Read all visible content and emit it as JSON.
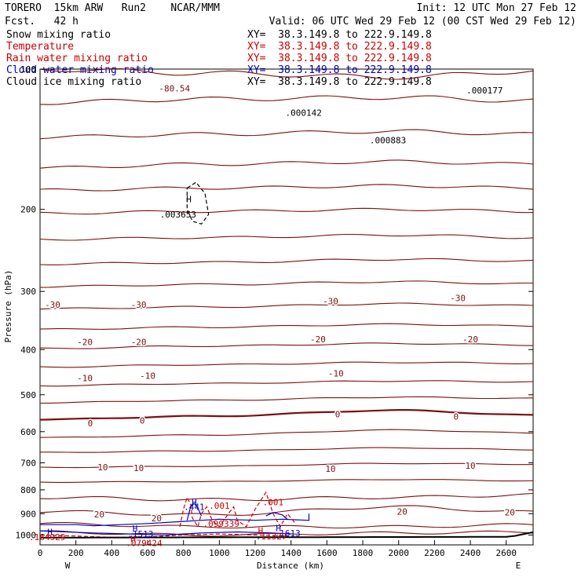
{
  "header": {
    "left_line1": "TORERO  15km ARW   Run2    NCAR/MMM",
    "left_line2": "Fcst.   42 h",
    "init": "Init: 12 UTC Mon 27 Feb 12",
    "valid": "Valid: 06 UTC Wed 29 Feb 12 (00 CST Wed 29 Feb 12)"
  },
  "legend": [
    {
      "name": "Snow mixing ratio",
      "color": "#000000",
      "xy": "XY=  38.3.149.8 to 222.9.149.8"
    },
    {
      "name": "Temperature",
      "color": "#cc0000",
      "xy": "XY=  38.3.149.8 to 222.9.149.8"
    },
    {
      "name": "Rain water mixing ratio",
      "color": "#cc0000",
      "xy": "XY=  38.3.149.8 to 222.9.149.8"
    },
    {
      "name": "Cloud water mixing ratio",
      "color": "#0000cc",
      "xy": "XY=  38.3.149.8 to 222.9.149.8"
    },
    {
      "name": "Cloud ice mixing ratio",
      "color": "#000000",
      "xy": "XY=  38.3.149.8 to 222.9.149.8"
    }
  ],
  "chart_data": {
    "type": "line",
    "title": "",
    "xlabel": "Distance (km)",
    "ylabel": "Pressure (hPa)",
    "xlim": [
      0,
      2750
    ],
    "ylim": [
      1050,
      100
    ],
    "x_ticks": [
      0,
      200,
      400,
      600,
      800,
      1000,
      1200,
      1400,
      1600,
      1800,
      2000,
      2200,
      2400,
      2600
    ],
    "y_ticks": [
      100,
      200,
      300,
      400,
      500,
      600,
      700,
      800,
      900,
      1000
    ],
    "y_log": true,
    "left_end_label": "W",
    "right_end_label": "E",
    "temperature_labels": [
      {
        "text": "-80.54",
        "x": 750,
        "p": 110
      },
      {
        "text": "-30",
        "x": 70,
        "p": 320
      },
      {
        "text": "-30",
        "x": 550,
        "p": 320
      },
      {
        "text": "-30",
        "x": 1620,
        "p": 315
      },
      {
        "text": "-30",
        "x": 2330,
        "p": 310
      },
      {
        "text": "-20",
        "x": 250,
        "p": 385
      },
      {
        "text": "-20",
        "x": 550,
        "p": 385
      },
      {
        "text": "-20",
        "x": 1550,
        "p": 380
      },
      {
        "text": "-20",
        "x": 2400,
        "p": 380
      },
      {
        "text": "-10",
        "x": 250,
        "p": 460
      },
      {
        "text": "-10",
        "x": 600,
        "p": 455
      },
      {
        "text": "-10",
        "x": 1650,
        "p": 450
      },
      {
        "text": "0",
        "x": 280,
        "p": 575
      },
      {
        "text": "0",
        "x": 570,
        "p": 568
      },
      {
        "text": "0",
        "x": 1660,
        "p": 550
      },
      {
        "text": "0",
        "x": 2320,
        "p": 557
      },
      {
        "text": "10",
        "x": 350,
        "p": 715
      },
      {
        "text": "10",
        "x": 550,
        "p": 718
      },
      {
        "text": "10",
        "x": 1620,
        "p": 720
      },
      {
        "text": "10",
        "x": 2400,
        "p": 710
      },
      {
        "text": "20",
        "x": 330,
        "p": 903
      },
      {
        "text": "20",
        "x": 650,
        "p": 920
      },
      {
        "text": "20",
        "x": 2020,
        "p": 890
      },
      {
        "text": "20",
        "x": 2620,
        "p": 893
      }
    ],
    "extrema_labels": [
      {
        "text": "H",
        "x": 830,
        "p": 190,
        "color": "#000000"
      },
      {
        "text": ".003653",
        "x": 770,
        "p": 205,
        "color": "#000000"
      },
      {
        "text": ".000142",
        "x": 1470,
        "p": 124,
        "color": "#000000"
      },
      {
        "text": ".000177",
        "x": 2480,
        "p": 111,
        "color": "#000000"
      },
      {
        "text": ".000883",
        "x": 1940,
        "p": 142,
        "color": "#000000"
      },
      {
        "text": "H",
        "x": 860,
        "p": 850,
        "color": "#0000cc"
      },
      {
        "text": ".441",
        "x": 860,
        "p": 870,
        "color": "#0000cc"
      },
      {
        "text": ".001",
        "x": 1000,
        "p": 865,
        "color": "#cc0000"
      },
      {
        "text": ".001",
        "x": 1300,
        "p": 850,
        "color": "#cc0000"
      },
      {
        "text": ".099339",
        "x": 1010,
        "p": 945,
        "color": "#cc0000"
      },
      {
        "text": "H",
        "x": 55,
        "p": 985,
        "color": "#0000cc"
      },
      {
        "text": ".164929",
        "x": 40,
        "p": 1010,
        "color": "#cc0000"
      },
      {
        "text": "H",
        "x": 530,
        "p": 967,
        "color": "#0000cc"
      },
      {
        "text": ".1513",
        "x": 560,
        "p": 995,
        "color": "#0000cc"
      },
      {
        "text": "H",
        "x": 520,
        "p": 1018,
        "color": "#cc0000"
      },
      {
        "text": ".079424",
        "x": 580,
        "p": 1040,
        "color": "#cc0000"
      },
      {
        "text": "H",
        "x": 1230,
        "p": 980,
        "color": "#cc0000"
      },
      {
        "text": "H",
        "x": 1330,
        "p": 966,
        "color": "#0000cc"
      },
      {
        "text": ".1613",
        "x": 1380,
        "p": 990,
        "color": "#0000cc"
      },
      {
        "text": ".11327",
        "x": 1290,
        "p": 1007,
        "color": "#cc0000"
      }
    ]
  }
}
